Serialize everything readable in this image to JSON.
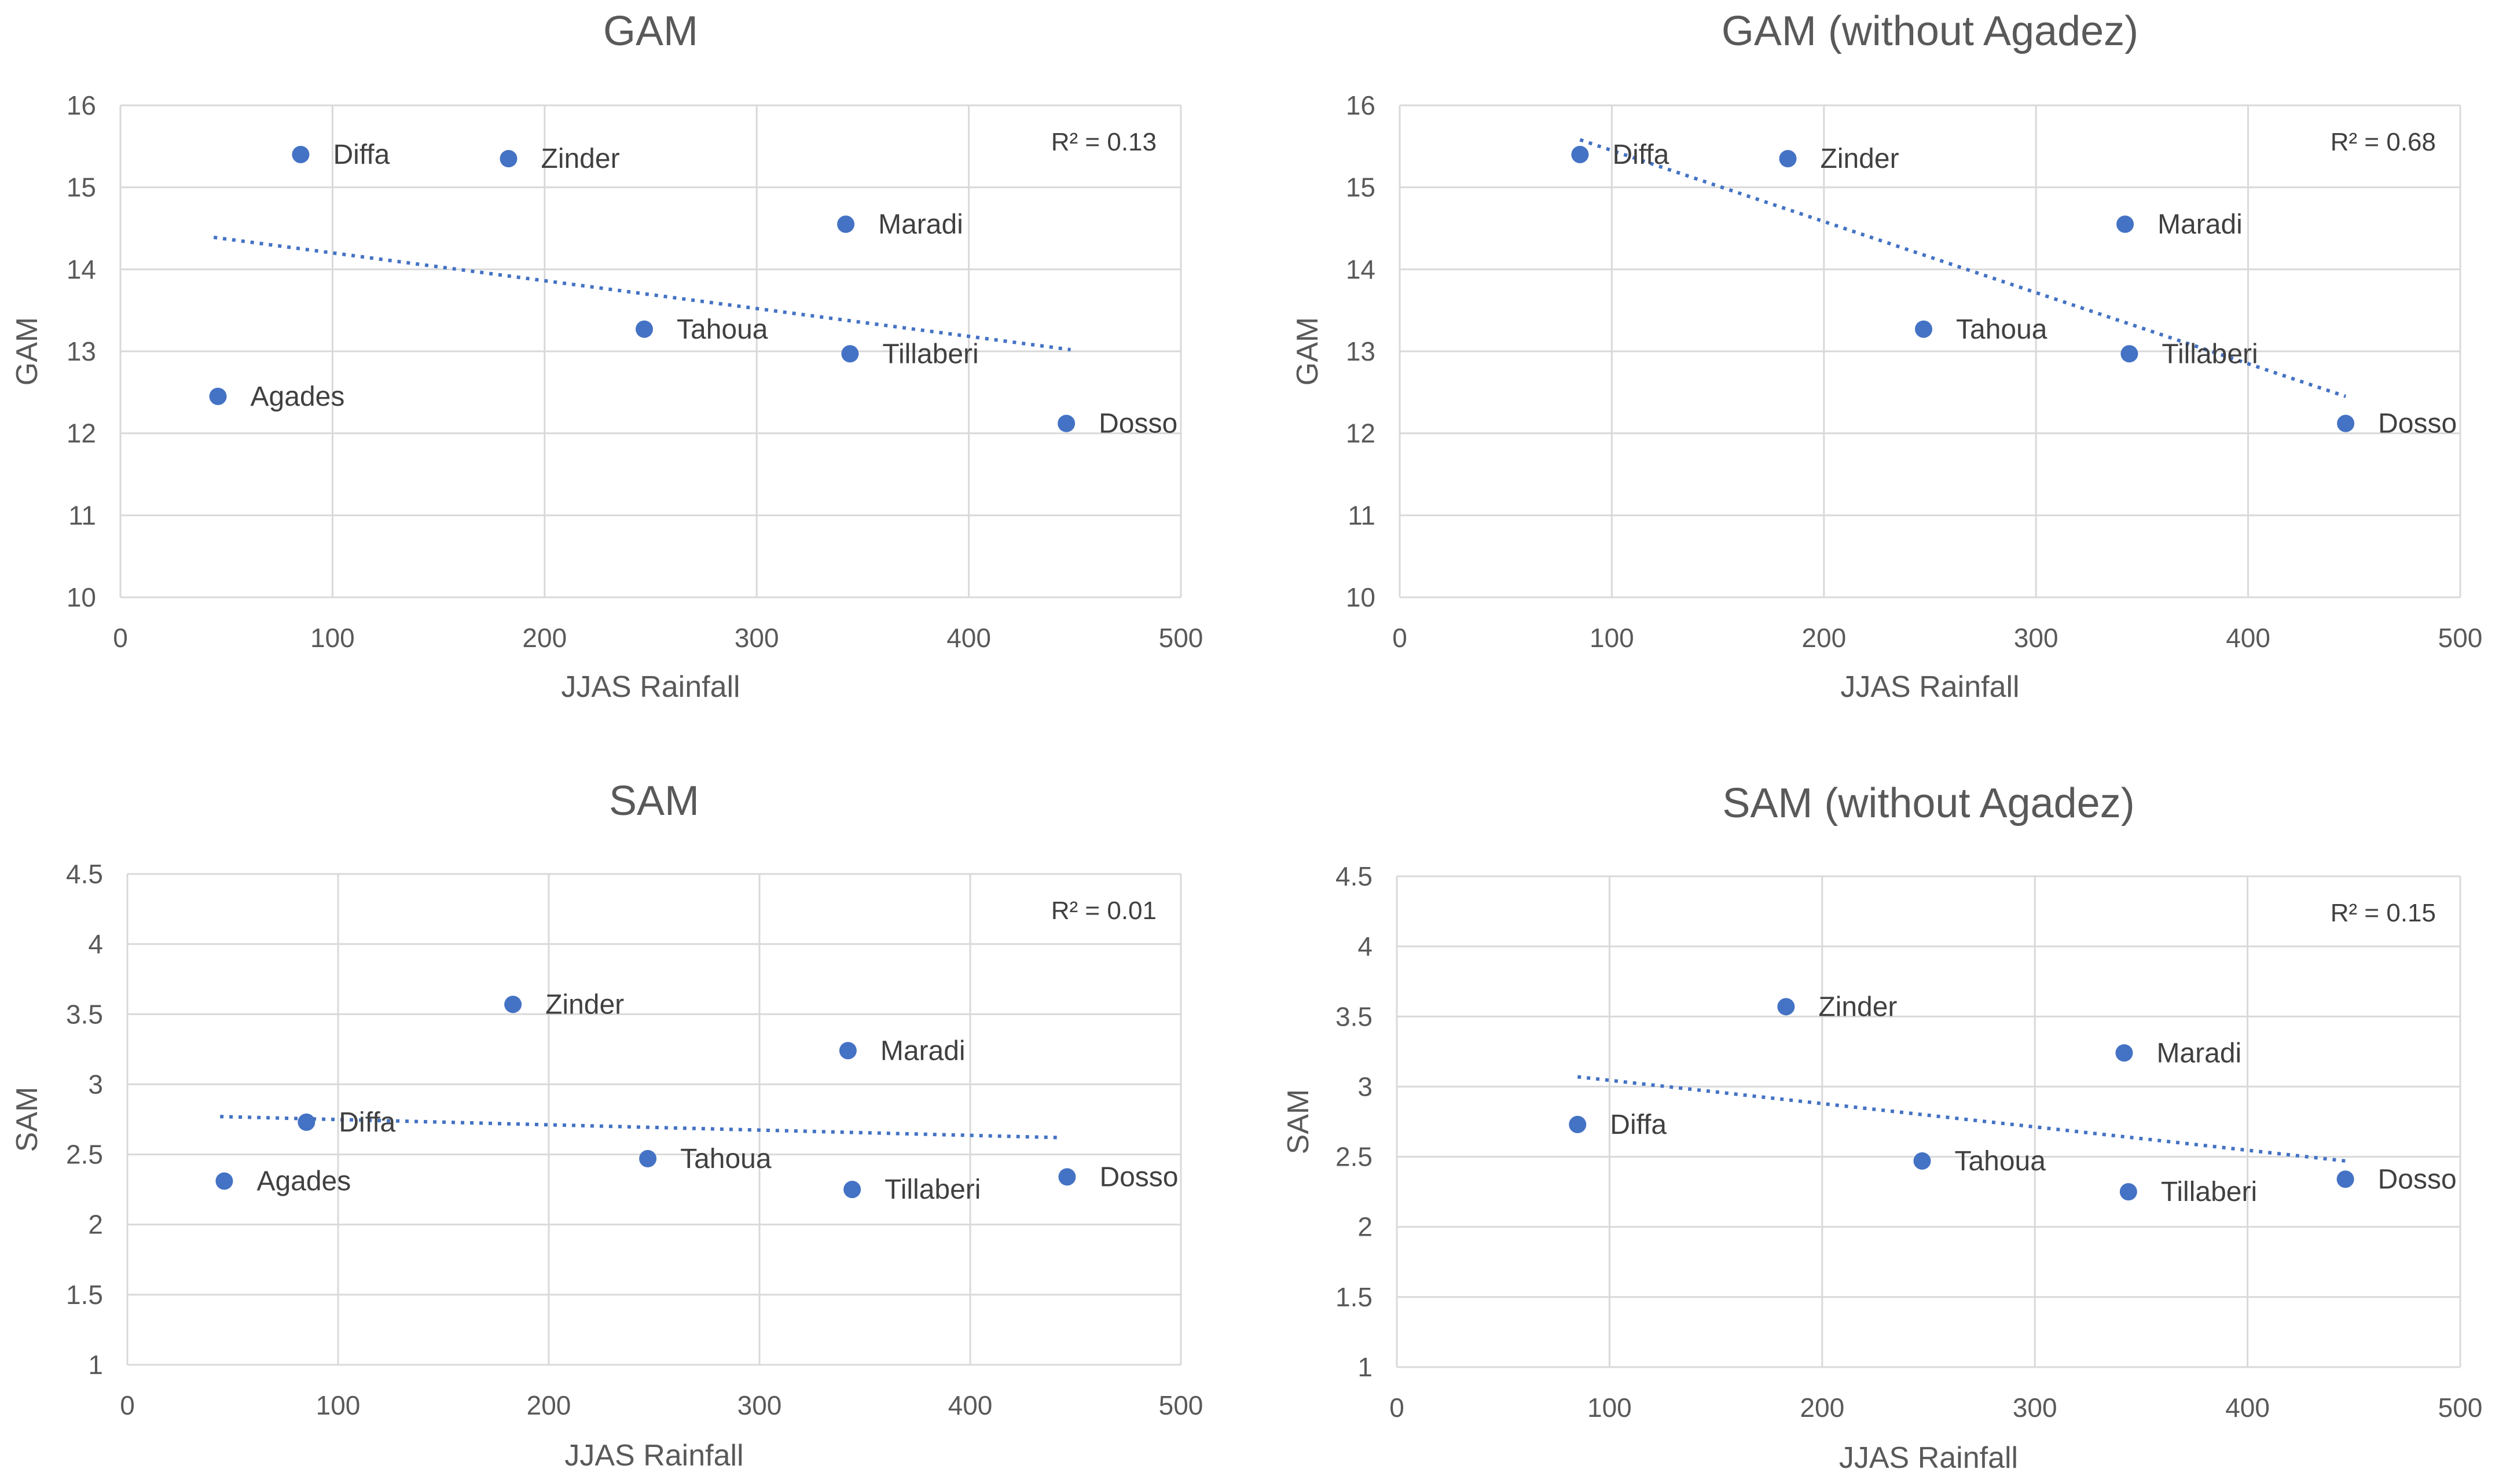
{
  "chart_data": [
    {
      "type": "scatter",
      "title": "GAM",
      "xlabel": "JJAS Rainfall",
      "ylabel": "GAM",
      "xlim": [
        0,
        500
      ],
      "ylim": [
        10,
        16
      ],
      "xticks": [
        0,
        100,
        200,
        300,
        400,
        500
      ],
      "yticks": [
        10,
        11,
        12,
        13,
        14,
        15,
        16
      ],
      "grid": true,
      "r2": "R² = 0.13",
      "points": [
        {
          "label": "Diffa",
          "x": 85,
          "y": 15.4
        },
        {
          "label": "Zinder",
          "x": 183,
          "y": 15.35
        },
        {
          "label": "Maradi",
          "x": 342,
          "y": 14.55
        },
        {
          "label": "Tahoua",
          "x": 247,
          "y": 13.27
        },
        {
          "label": "Tillaberi",
          "x": 344,
          "y": 12.97
        },
        {
          "label": "Agades",
          "x": 46,
          "y": 12.45
        },
        {
          "label": "Dosso",
          "x": 446,
          "y": 12.12
        }
      ],
      "trendline": {
        "x": [
          44,
          448
        ],
        "y": [
          14.39,
          13.02
        ]
      }
    },
    {
      "type": "scatter",
      "title": "GAM (without Agadez)",
      "xlabel": "JJAS Rainfall",
      "ylabel": "GAM",
      "xlim": [
        0,
        500
      ],
      "ylim": [
        10,
        16
      ],
      "xticks": [
        0,
        100,
        200,
        300,
        400,
        500
      ],
      "yticks": [
        10,
        11,
        12,
        13,
        14,
        15,
        16
      ],
      "grid": true,
      "r2": "R² = 0.68",
      "points": [
        {
          "label": "Diffa",
          "x": 85,
          "y": 15.4
        },
        {
          "label": "Zinder",
          "x": 183,
          "y": 15.35
        },
        {
          "label": "Maradi",
          "x": 342,
          "y": 14.55
        },
        {
          "label": "Tahoua",
          "x": 247,
          "y": 13.27
        },
        {
          "label": "Tillaberi",
          "x": 344,
          "y": 12.97
        },
        {
          "label": "Dosso",
          "x": 446,
          "y": 12.12
        }
      ],
      "trendline": {
        "x": [
          85,
          446
        ],
        "y": [
          15.58,
          12.45
        ]
      }
    },
    {
      "type": "scatter",
      "title": "SAM",
      "xlabel": "JJAS Rainfall",
      "ylabel": "SAM",
      "xlim": [
        0,
        500
      ],
      "ylim": [
        1,
        4.5
      ],
      "xticks": [
        0,
        100,
        200,
        300,
        400,
        500
      ],
      "yticks": [
        1,
        1.5,
        2,
        2.5,
        3,
        3.5,
        4,
        4.5
      ],
      "grid": true,
      "r2": "R² = 0.01",
      "points": [
        {
          "label": "Zinder",
          "x": 183,
          "y": 3.57
        },
        {
          "label": "Maradi",
          "x": 342,
          "y": 3.24
        },
        {
          "label": "Diffa",
          "x": 85,
          "y": 2.73
        },
        {
          "label": "Tahoua",
          "x": 247,
          "y": 2.47
        },
        {
          "label": "Agades",
          "x": 46,
          "y": 2.31
        },
        {
          "label": "Dosso",
          "x": 446,
          "y": 2.34
        },
        {
          "label": "Tillaberi",
          "x": 344,
          "y": 2.25
        }
      ],
      "trendline": {
        "x": [
          44,
          442
        ],
        "y": [
          2.77,
          2.62
        ]
      }
    },
    {
      "type": "scatter",
      "title": "SAM (without Agadez)",
      "xlabel": "JJAS Rainfall",
      "ylabel": "SAM",
      "xlim": [
        0,
        500
      ],
      "ylim": [
        1,
        4.5
      ],
      "xticks": [
        0,
        100,
        200,
        300,
        400,
        500
      ],
      "yticks": [
        1,
        1.5,
        2,
        2.5,
        3,
        3.5,
        4,
        4.5
      ],
      "grid": true,
      "r2": "R² = 0.15",
      "points": [
        {
          "label": "Zinder",
          "x": 183,
          "y": 3.57
        },
        {
          "label": "Maradi",
          "x": 342,
          "y": 3.24
        },
        {
          "label": "Diffa",
          "x": 85,
          "y": 2.73
        },
        {
          "label": "Tahoua",
          "x": 247,
          "y": 2.47
        },
        {
          "label": "Dosso",
          "x": 446,
          "y": 2.34
        },
        {
          "label": "Tillaberi",
          "x": 344,
          "y": 2.25
        }
      ],
      "trendline": {
        "x": [
          85,
          446
        ],
        "y": [
          3.07,
          2.47
        ]
      }
    }
  ]
}
